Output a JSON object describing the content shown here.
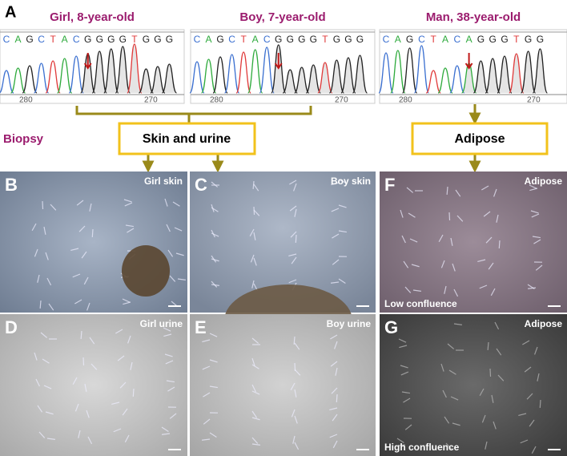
{
  "figure": {
    "panel_a": {
      "label": "A",
      "samples": [
        {
          "title": "Girl, 8-year-old",
          "sequence": [
            "C",
            "A",
            "G",
            "C",
            "T",
            "A",
            "C",
            "G",
            "G",
            "G",
            "G",
            "T",
            "G",
            "G",
            "G"
          ],
          "positions": [
            280,
            270
          ]
        },
        {
          "title": "Boy, 7-year-old",
          "sequence": [
            "C",
            "A",
            "G",
            "C",
            "T",
            "A",
            "C",
            "G",
            "G",
            "G",
            "G",
            "T",
            "G",
            "G",
            "G"
          ],
          "positions": [
            280,
            270
          ]
        },
        {
          "title": "Man, 38-year-old",
          "sequence": [
            "C",
            "A",
            "G",
            "C",
            "T",
            "A",
            "C",
            "A",
            "G",
            "G",
            "G",
            "T",
            "G",
            "G"
          ],
          "positions": [
            280,
            270
          ]
        }
      ]
    },
    "biopsy": "Biopsy",
    "sources": [
      "Skin and urine",
      "Adipose"
    ],
    "panels": [
      {
        "label": "B",
        "caption": "Girl skin"
      },
      {
        "label": "C",
        "caption": "Boy skin"
      },
      {
        "label": "F",
        "caption": "Adipose",
        "note": "Low confluence"
      },
      {
        "label": "D",
        "caption": "Girl urine"
      },
      {
        "label": "E",
        "caption": "Boy urine"
      },
      {
        "label": "G",
        "caption": "Adipose",
        "note": "High confluence"
      }
    ]
  }
}
